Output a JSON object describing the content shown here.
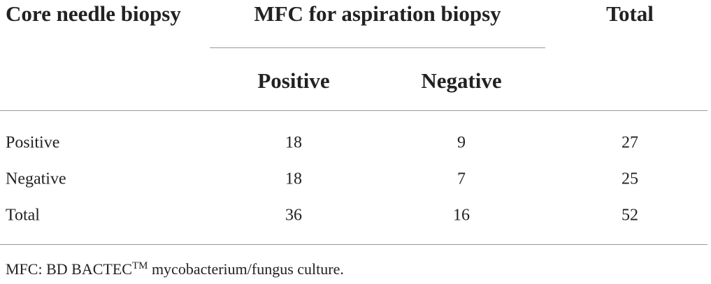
{
  "table": {
    "header": [
      "Core needle biopsy",
      "MFC for aspiration biopsy",
      "Total"
    ],
    "subheader": [
      "Positive",
      "Negative"
    ],
    "rows": [
      [
        "Positive",
        18,
        9,
        27
      ],
      [
        "Negative",
        18,
        7,
        25
      ],
      [
        "Total",
        36,
        16,
        52
      ]
    ]
  },
  "footnote": {
    "text": "MFC: BD BACTEC",
    "superscript": "TM",
    "rest": " mycobacterium/fungus culture."
  }
}
